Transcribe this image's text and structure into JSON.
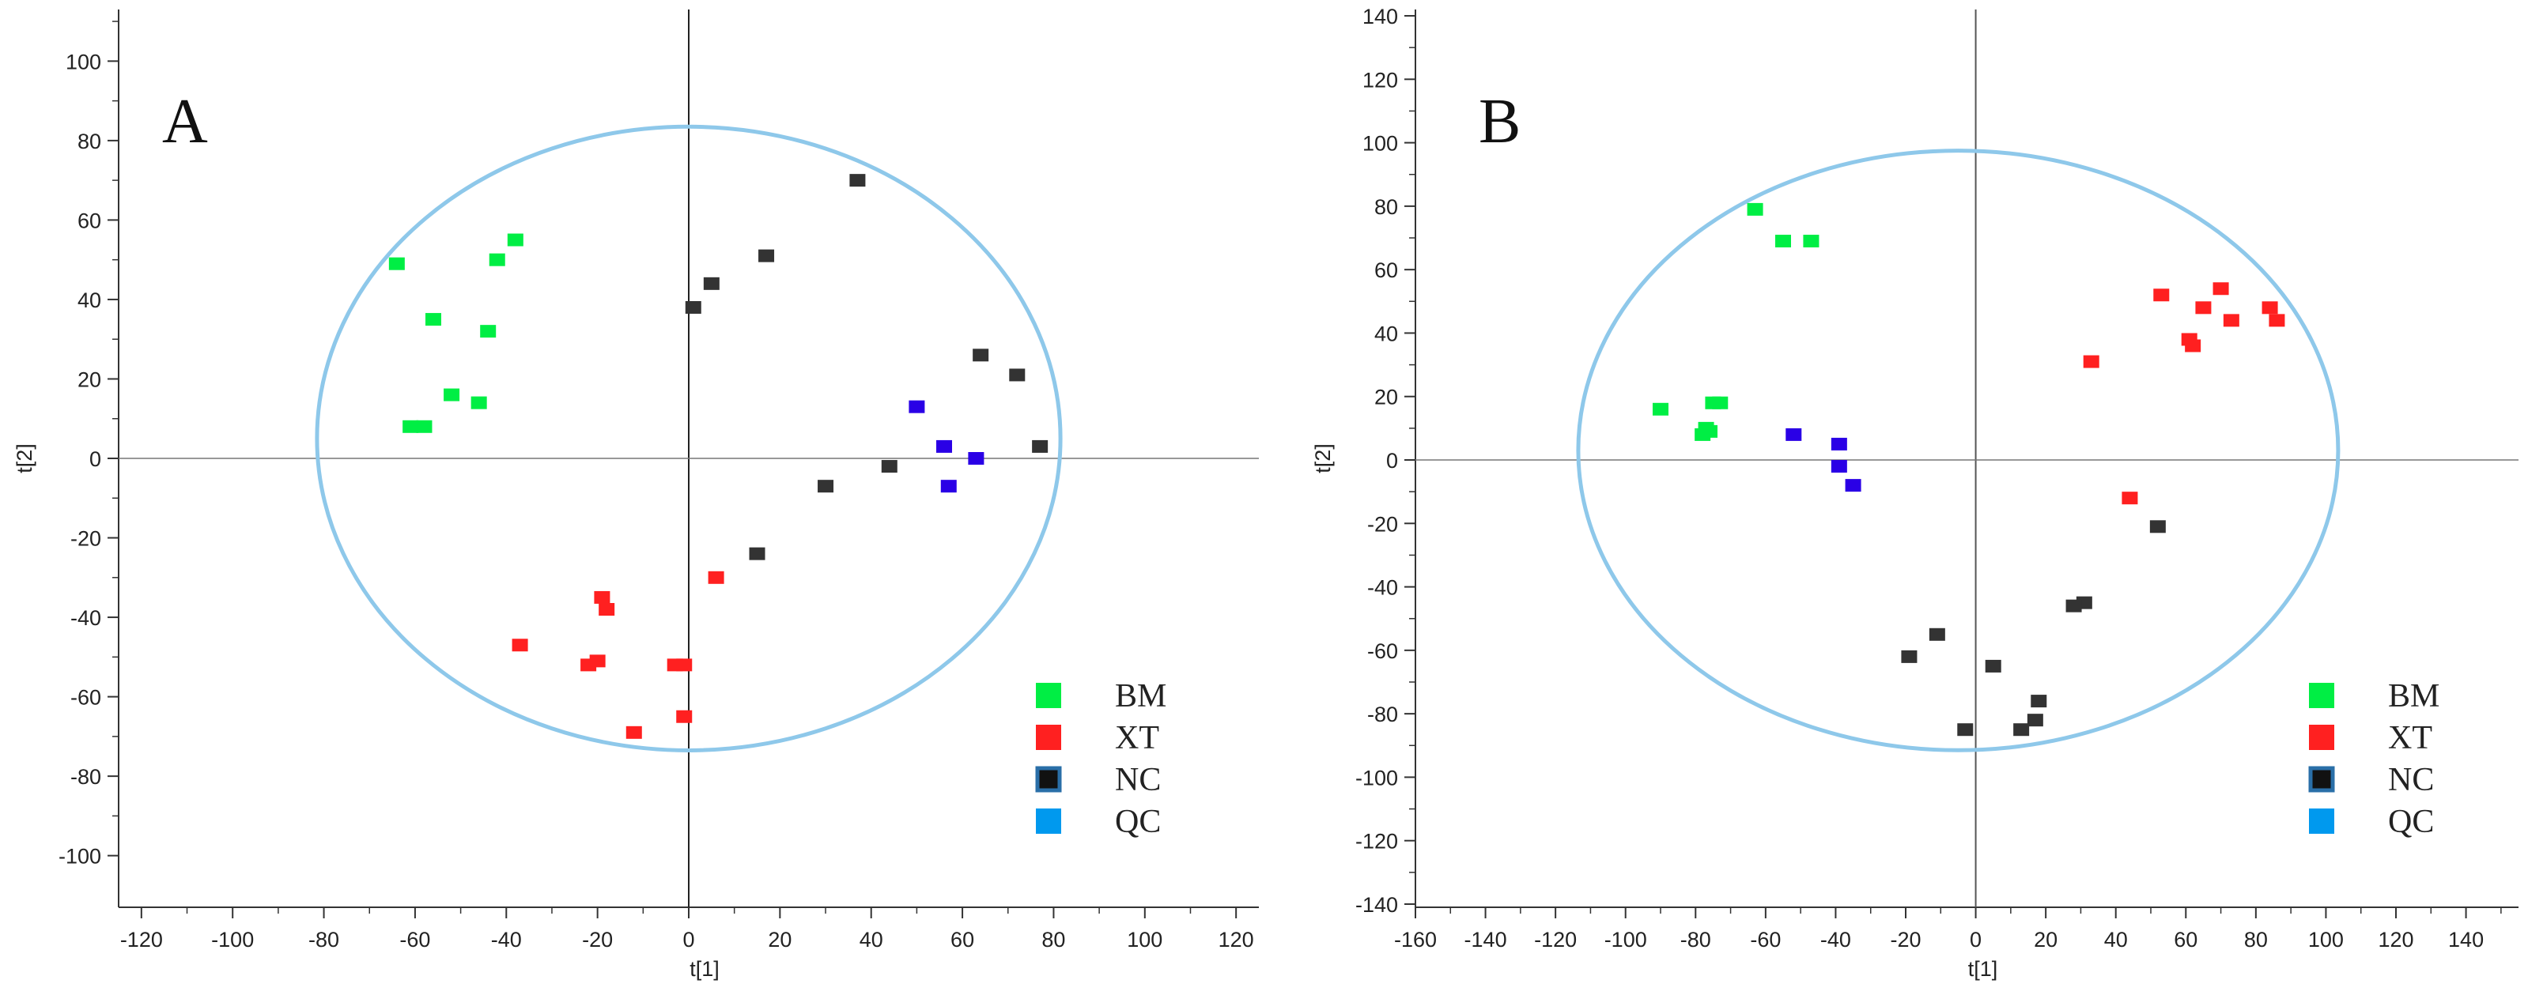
{
  "chart_data": [
    {
      "type": "scatter",
      "panel_label": "A",
      "xlabel": "t[1]",
      "ylabel": "t[2]",
      "xlim": [
        -125,
        125
      ],
      "ylim": [
        -113,
        113
      ],
      "xticks": [
        -120,
        -100,
        -80,
        -60,
        -40,
        -20,
        0,
        20,
        40,
        60,
        80,
        100,
        120
      ],
      "yticks": [
        -100,
        -80,
        -60,
        -40,
        -20,
        0,
        20,
        40,
        60,
        80,
        100
      ],
      "ellipse": {
        "cx": 0,
        "cy": 5,
        "rx": 81.5,
        "ry": 78.5,
        "color": "#8ec8ea"
      },
      "legend": [
        {
          "name": "BM",
          "color": "#00ee44"
        },
        {
          "name": "XT",
          "color": "#ff2020"
        },
        {
          "name": "NC",
          "color": "#111111",
          "border": "#2a6fa8"
        },
        {
          "name": "QC",
          "color": "#0099ee"
        }
      ],
      "series": [
        {
          "name": "BM",
          "color": "#00ee44",
          "points": [
            [
              -64,
              49
            ],
            [
              -56,
              35
            ],
            [
              -42,
              50
            ],
            [
              -38,
              55
            ],
            [
              -44,
              32
            ],
            [
              -52,
              16
            ],
            [
              -46,
              14
            ],
            [
              -61,
              8
            ],
            [
              -58,
              8
            ]
          ]
        },
        {
          "name": "XT",
          "color": "#ff2020",
          "points": [
            [
              -19,
              -35
            ],
            [
              -18,
              -38
            ],
            [
              -37,
              -47
            ],
            [
              -22,
              -52
            ],
            [
              -20,
              -51
            ],
            [
              -3,
              -52
            ],
            [
              -1,
              -52
            ],
            [
              -1,
              -65
            ],
            [
              -12,
              -69
            ],
            [
              6,
              -30
            ]
          ]
        },
        {
          "name": "NC",
          "color": "#333333",
          "points": [
            [
              37,
              70
            ],
            [
              17,
              51
            ],
            [
              5,
              44
            ],
            [
              1,
              38
            ],
            [
              64,
              26
            ],
            [
              72,
              21
            ],
            [
              77,
              3
            ],
            [
              44,
              -2
            ],
            [
              30,
              -7
            ],
            [
              15,
              -24
            ]
          ]
        },
        {
          "name": "QC",
          "color": "#2a00e6",
          "points": [
            [
              50,
              13
            ],
            [
              56,
              3
            ],
            [
              63,
              0
            ],
            [
              57,
              -7
            ]
          ]
        }
      ]
    },
    {
      "type": "scatter",
      "panel_label": "B",
      "xlabel": "t[1]",
      "ylabel": "t[2]",
      "xlim": [
        -160,
        155
      ],
      "ylim": [
        -141,
        142
      ],
      "xticks": [
        -160,
        -140,
        -120,
        -100,
        -80,
        -60,
        -40,
        -20,
        0,
        20,
        40,
        60,
        80,
        100,
        120,
        140
      ],
      "yticks": [
        -140,
        -120,
        -100,
        -80,
        -60,
        -40,
        -20,
        0,
        20,
        40,
        60,
        80,
        100,
        120,
        140
      ],
      "ellipse": {
        "cx": -5,
        "cy": 3,
        "rx": 108.5,
        "ry": 94.5,
        "color": "#8ec8ea"
      },
      "legend": [
        {
          "name": "BM",
          "color": "#00ee44"
        },
        {
          "name": "XT",
          "color": "#ff2020"
        },
        {
          "name": "NC",
          "color": "#111111",
          "border": "#2a6fa8"
        },
        {
          "name": "QC",
          "color": "#0099ee"
        }
      ],
      "series": [
        {
          "name": "BM",
          "color": "#00ee44",
          "points": [
            [
              -63,
              79
            ],
            [
              -55,
              69
            ],
            [
              -47,
              69
            ],
            [
              -90,
              16
            ],
            [
              -75,
              18
            ],
            [
              -73,
              18
            ],
            [
              -77,
              10
            ],
            [
              -78,
              8
            ],
            [
              -76,
              9
            ]
          ]
        },
        {
          "name": "XT",
          "color": "#ff2020",
          "points": [
            [
              53,
              52
            ],
            [
              70,
              54
            ],
            [
              65,
              48
            ],
            [
              84,
              48
            ],
            [
              61,
              38
            ],
            [
              62,
              36
            ],
            [
              73,
              44
            ],
            [
              86,
              44
            ],
            [
              33,
              31
            ],
            [
              44,
              -12
            ]
          ]
        },
        {
          "name": "NC",
          "color": "#333333",
          "points": [
            [
              52,
              -21
            ],
            [
              31,
              -45
            ],
            [
              28,
              -46
            ],
            [
              -11,
              -55
            ],
            [
              -19,
              -62
            ],
            [
              5,
              -65
            ],
            [
              18,
              -76
            ],
            [
              17,
              -82
            ],
            [
              13,
              -85
            ],
            [
              -3,
              -85
            ]
          ]
        },
        {
          "name": "QC",
          "color": "#2a00e6",
          "points": [
            [
              -52,
              8
            ],
            [
              -39,
              5
            ],
            [
              -39,
              -2
            ],
            [
              -35,
              -8
            ]
          ]
        }
      ]
    }
  ]
}
